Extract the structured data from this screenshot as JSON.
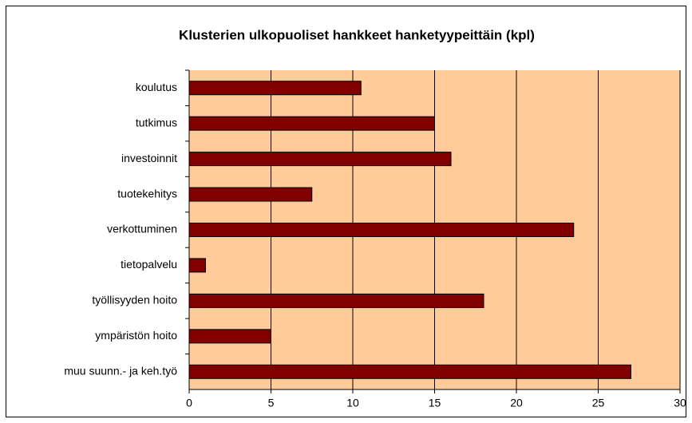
{
  "chart_data": {
    "type": "bar",
    "orientation": "horizontal",
    "title": "Klusterien ulkopuoliset hankkeet hanketyypeittäin (kpl)",
    "categories": [
      "koulutus",
      "tutkimus",
      "investoinnit",
      "tuotekehitys",
      "verkottuminen",
      "tietopalvelu",
      "työllisyyden hoito",
      "ympäristön hoito",
      "muu suunn.- ja keh.työ"
    ],
    "values": [
      10.5,
      15,
      16,
      7.5,
      23.5,
      1,
      18,
      5,
      27
    ],
    "color": "#800000",
    "xlim": [
      0,
      30
    ],
    "xticks": [
      0,
      5,
      10,
      15,
      20,
      25,
      30
    ],
    "grid": true
  }
}
